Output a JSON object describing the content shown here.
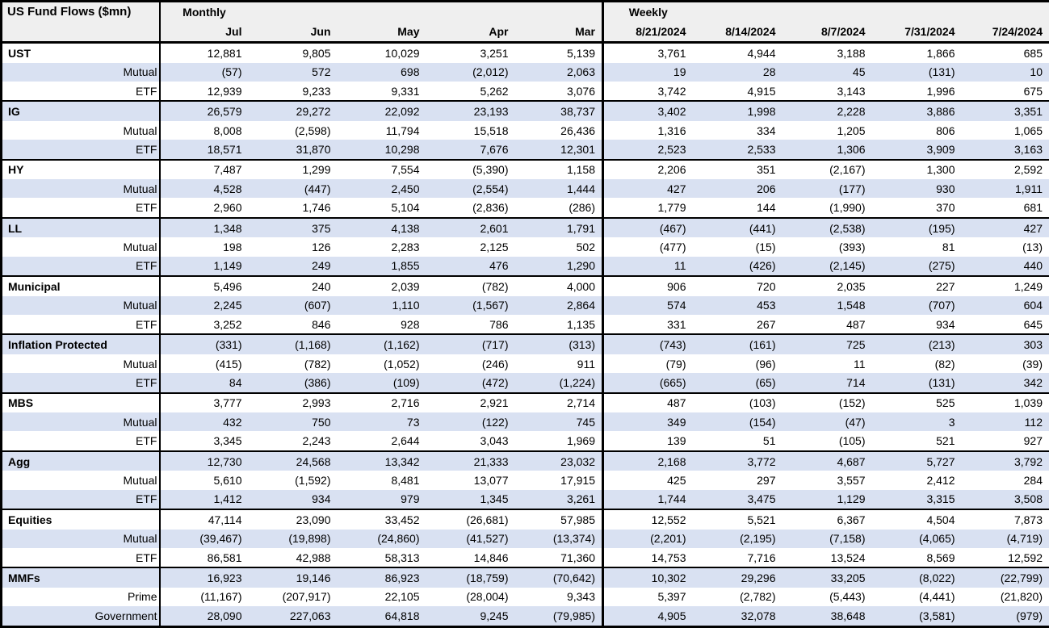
{
  "chart_data": {
    "type": "table",
    "title": "US Fund Flows ($mn)",
    "monthly_label": "Monthly",
    "weekly_label": "Weekly",
    "monthly_columns": [
      "Jul",
      "Jun",
      "May",
      "Apr",
      "Mar"
    ],
    "weekly_columns": [
      "8/21/2024",
      "8/14/2024",
      "8/7/2024",
      "7/31/2024",
      "7/24/2024"
    ],
    "groups": [
      {
        "name": "UST",
        "rows": [
          {
            "label": "UST",
            "monthly": [
              "12,881",
              "9,805",
              "10,029",
              "3,251",
              "5,139"
            ],
            "weekly": [
              "3,761",
              "4,944",
              "3,188",
              "1,866",
              "685"
            ]
          },
          {
            "label": "Mutual",
            "monthly": [
              "(57)",
              "572",
              "698",
              "(2,012)",
              "2,063"
            ],
            "weekly": [
              "19",
              "28",
              "45",
              "(131)",
              "10"
            ]
          },
          {
            "label": "ETF",
            "monthly": [
              "12,939",
              "9,233",
              "9,331",
              "5,262",
              "3,076"
            ],
            "weekly": [
              "3,742",
              "4,915",
              "3,143",
              "1,996",
              "675"
            ]
          }
        ]
      },
      {
        "name": "IG",
        "rows": [
          {
            "label": "IG",
            "monthly": [
              "26,579",
              "29,272",
              "22,092",
              "23,193",
              "38,737"
            ],
            "weekly": [
              "3,402",
              "1,998",
              "2,228",
              "3,886",
              "3,351"
            ]
          },
          {
            "label": "Mutual",
            "monthly": [
              "8,008",
              "(2,598)",
              "11,794",
              "15,518",
              "26,436"
            ],
            "weekly": [
              "1,316",
              "334",
              "1,205",
              "806",
              "1,065"
            ]
          },
          {
            "label": "ETF",
            "monthly": [
              "18,571",
              "31,870",
              "10,298",
              "7,676",
              "12,301"
            ],
            "weekly": [
              "2,523",
              "2,533",
              "1,306",
              "3,909",
              "3,163"
            ]
          }
        ]
      },
      {
        "name": "HY",
        "rows": [
          {
            "label": "HY",
            "monthly": [
              "7,487",
              "1,299",
              "7,554",
              "(5,390)",
              "1,158"
            ],
            "weekly": [
              "2,206",
              "351",
              "(2,167)",
              "1,300",
              "2,592"
            ]
          },
          {
            "label": "Mutual",
            "monthly": [
              "4,528",
              "(447)",
              "2,450",
              "(2,554)",
              "1,444"
            ],
            "weekly": [
              "427",
              "206",
              "(177)",
              "930",
              "1,911"
            ]
          },
          {
            "label": "ETF",
            "monthly": [
              "2,960",
              "1,746",
              "5,104",
              "(2,836)",
              "(286)"
            ],
            "weekly": [
              "1,779",
              "144",
              "(1,990)",
              "370",
              "681"
            ]
          }
        ]
      },
      {
        "name": "LL",
        "rows": [
          {
            "label": "LL",
            "monthly": [
              "1,348",
              "375",
              "4,138",
              "2,601",
              "1,791"
            ],
            "weekly": [
              "(467)",
              "(441)",
              "(2,538)",
              "(195)",
              "427"
            ]
          },
          {
            "label": "Mutual",
            "monthly": [
              "198",
              "126",
              "2,283",
              "2,125",
              "502"
            ],
            "weekly": [
              "(477)",
              "(15)",
              "(393)",
              "81",
              "(13)"
            ]
          },
          {
            "label": "ETF",
            "monthly": [
              "1,149",
              "249",
              "1,855",
              "476",
              "1,290"
            ],
            "weekly": [
              "11",
              "(426)",
              "(2,145)",
              "(275)",
              "440"
            ]
          }
        ]
      },
      {
        "name": "Municipal",
        "rows": [
          {
            "label": "Municipal",
            "monthly": [
              "5,496",
              "240",
              "2,039",
              "(782)",
              "4,000"
            ],
            "weekly": [
              "906",
              "720",
              "2,035",
              "227",
              "1,249"
            ]
          },
          {
            "label": "Mutual",
            "monthly": [
              "2,245",
              "(607)",
              "1,110",
              "(1,567)",
              "2,864"
            ],
            "weekly": [
              "574",
              "453",
              "1,548",
              "(707)",
              "604"
            ]
          },
          {
            "label": "ETF",
            "monthly": [
              "3,252",
              "846",
              "928",
              "786",
              "1,135"
            ],
            "weekly": [
              "331",
              "267",
              "487",
              "934",
              "645"
            ]
          }
        ]
      },
      {
        "name": "Inflation Protected",
        "rows": [
          {
            "label": "Inflation Protected",
            "monthly": [
              "(331)",
              "(1,168)",
              "(1,162)",
              "(717)",
              "(313)"
            ],
            "weekly": [
              "(743)",
              "(161)",
              "725",
              "(213)",
              "303"
            ]
          },
          {
            "label": "Mutual",
            "monthly": [
              "(415)",
              "(782)",
              "(1,052)",
              "(246)",
              "911"
            ],
            "weekly": [
              "(79)",
              "(96)",
              "11",
              "(82)",
              "(39)"
            ]
          },
          {
            "label": "ETF",
            "monthly": [
              "84",
              "(386)",
              "(109)",
              "(472)",
              "(1,224)"
            ],
            "weekly": [
              "(665)",
              "(65)",
              "714",
              "(131)",
              "342"
            ]
          }
        ]
      },
      {
        "name": "MBS",
        "rows": [
          {
            "label": "MBS",
            "monthly": [
              "3,777",
              "2,993",
              "2,716",
              "2,921",
              "2,714"
            ],
            "weekly": [
              "487",
              "(103)",
              "(152)",
              "525",
              "1,039"
            ]
          },
          {
            "label": "Mutual",
            "monthly": [
              "432",
              "750",
              "73",
              "(122)",
              "745"
            ],
            "weekly": [
              "349",
              "(154)",
              "(47)",
              "3",
              "112"
            ]
          },
          {
            "label": "ETF",
            "monthly": [
              "3,345",
              "2,243",
              "2,644",
              "3,043",
              "1,969"
            ],
            "weekly": [
              "139",
              "51",
              "(105)",
              "521",
              "927"
            ]
          }
        ]
      },
      {
        "name": "Agg",
        "rows": [
          {
            "label": "Agg",
            "monthly": [
              "12,730",
              "24,568",
              "13,342",
              "21,333",
              "23,032"
            ],
            "weekly": [
              "2,168",
              "3,772",
              "4,687",
              "5,727",
              "3,792"
            ]
          },
          {
            "label": "Mutual",
            "monthly": [
              "5,610",
              "(1,592)",
              "8,481",
              "13,077",
              "17,915"
            ],
            "weekly": [
              "425",
              "297",
              "3,557",
              "2,412",
              "284"
            ]
          },
          {
            "label": "ETF",
            "monthly": [
              "1,412",
              "934",
              "979",
              "1,345",
              "3,261"
            ],
            "weekly": [
              "1,744",
              "3,475",
              "1,129",
              "3,315",
              "3,508"
            ]
          }
        ]
      },
      {
        "name": "Equities",
        "rows": [
          {
            "label": "Equities",
            "monthly": [
              "47,114",
              "23,090",
              "33,452",
              "(26,681)",
              "57,985"
            ],
            "weekly": [
              "12,552",
              "5,521",
              "6,367",
              "4,504",
              "7,873"
            ]
          },
          {
            "label": "Mutual",
            "monthly": [
              "(39,467)",
              "(19,898)",
              "(24,860)",
              "(41,527)",
              "(13,374)"
            ],
            "weekly": [
              "(2,201)",
              "(2,195)",
              "(7,158)",
              "(4,065)",
              "(4,719)"
            ]
          },
          {
            "label": "ETF",
            "monthly": [
              "86,581",
              "42,988",
              "58,313",
              "14,846",
              "71,360"
            ],
            "weekly": [
              "14,753",
              "7,716",
              "13,524",
              "8,569",
              "12,592"
            ]
          }
        ]
      },
      {
        "name": "MMFs",
        "rows": [
          {
            "label": "MMFs",
            "monthly": [
              "16,923",
              "19,146",
              "86,923",
              "(18,759)",
              "(70,642)"
            ],
            "weekly": [
              "10,302",
              "29,296",
              "33,205",
              "(8,022)",
              "(22,799)"
            ]
          },
          {
            "label": "Prime",
            "monthly": [
              "(11,167)",
              "(207,917)",
              "22,105",
              "(28,004)",
              "9,343"
            ],
            "weekly": [
              "5,397",
              "(2,782)",
              "(5,443)",
              "(4,441)",
              "(21,820)"
            ]
          },
          {
            "label": "Government",
            "monthly": [
              "28,090",
              "227,063",
              "64,818",
              "9,245",
              "(79,985)"
            ],
            "weekly": [
              "4,905",
              "32,078",
              "38,648",
              "(3,581)",
              "(979)"
            ]
          }
        ]
      }
    ]
  },
  "colors": {
    "row_shade": "#d9e1f2",
    "header_bg": "#efefef",
    "border": "#000000"
  }
}
